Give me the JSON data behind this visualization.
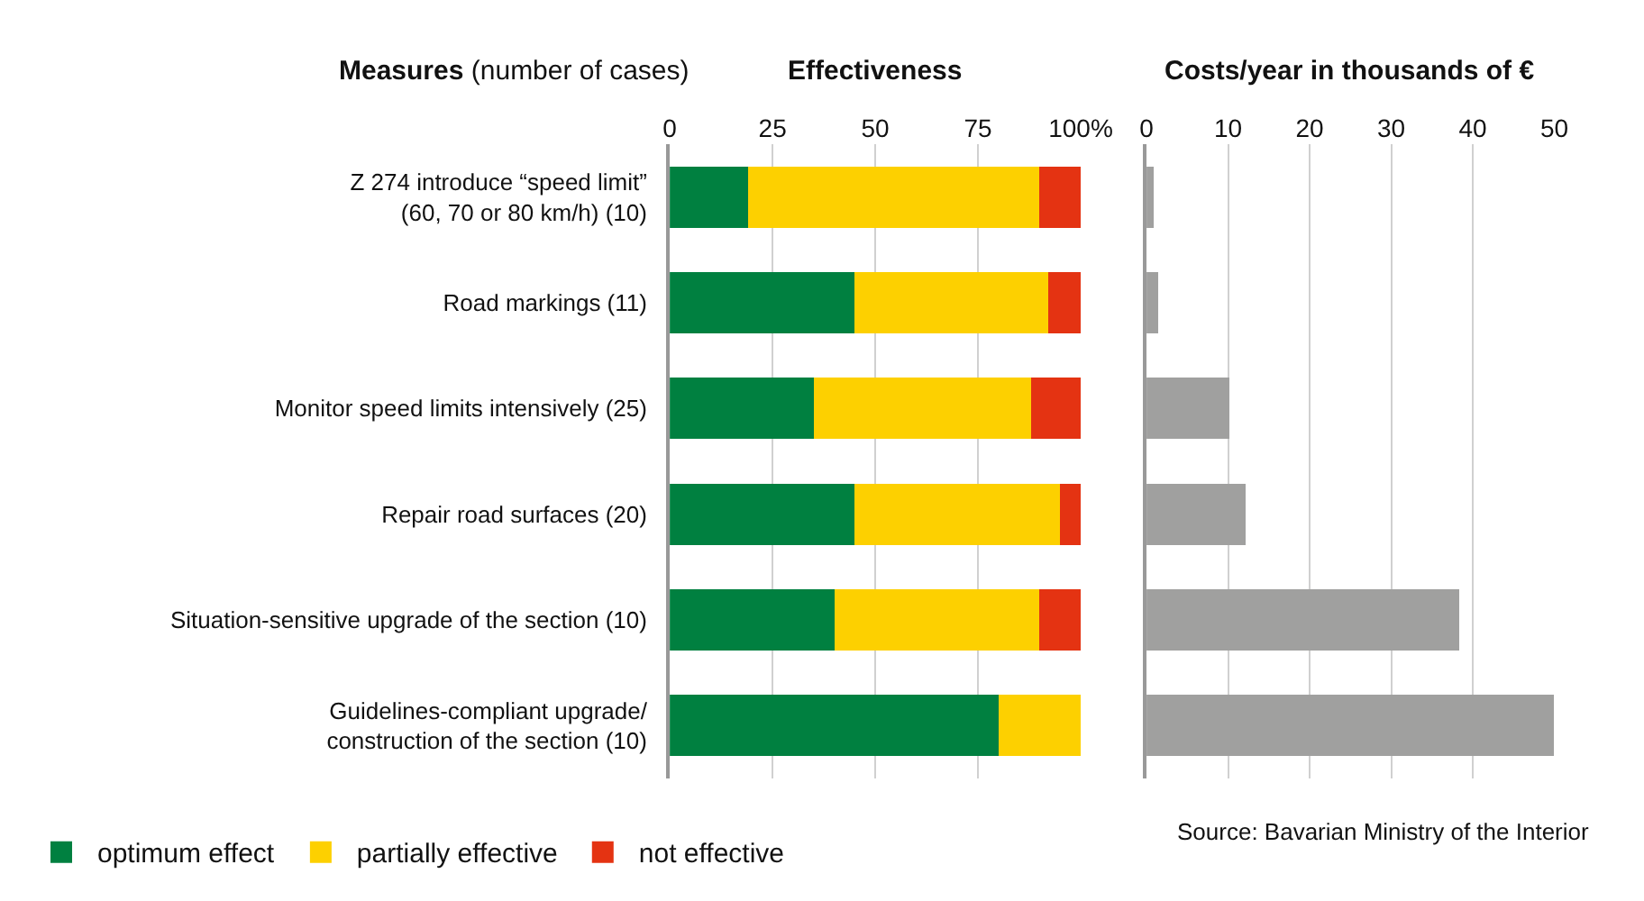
{
  "chart_data": [
    {
      "type": "bar",
      "orientation": "horizontal",
      "stacked": true,
      "title": "Effectiveness",
      "ylabel": "Measures (number of cases)",
      "categories": [
        "Z 274 introduce “speed limit”\n(60, 70 or 80 km/h) (10)",
        "Road markings (11)",
        "Monitor speed limits intensively (25)",
        "Repair road surfaces (20)",
        "Situation-sensitive upgrade of the section (10)",
        "Guidelines-compliant upgrade/\nconstruction of the section (10)"
      ],
      "series": [
        {
          "name": "optimum effect",
          "color": "#008040",
          "values": [
            19,
            45,
            35,
            45,
            40,
            80
          ]
        },
        {
          "name": "partially effective",
          "color": "#fdd000",
          "values": [
            71,
            47,
            53,
            50,
            50,
            20
          ]
        },
        {
          "name": "not effective",
          "color": "#e43312",
          "values": [
            10,
            8,
            12,
            5,
            10,
            0
          ]
        }
      ],
      "xlim": [
        0,
        100
      ],
      "xticks": [
        0,
        25,
        50,
        75,
        {
          "value": 100,
          "label": "100%"
        }
      ],
      "grid": "x",
      "legend": "bottom left"
    },
    {
      "type": "bar",
      "orientation": "horizontal",
      "title": "Costs/year in thousands of €",
      "categories": [
        null,
        null,
        null,
        null,
        null,
        null
      ],
      "series": [
        {
          "color": "#a0a09f",
          "values": [
            0.9,
            1.4,
            10.2,
            12.2,
            38.3,
            50
          ]
        }
      ],
      "xlim": [
        0,
        50
      ],
      "xticks": [
        0,
        10,
        20,
        30,
        40,
        50
      ],
      "grid": "x",
      "tick_labels": "x",
      "annotations": [
        "Source: Bavarian Ministry of the Interior"
      ]
    }
  ]
}
